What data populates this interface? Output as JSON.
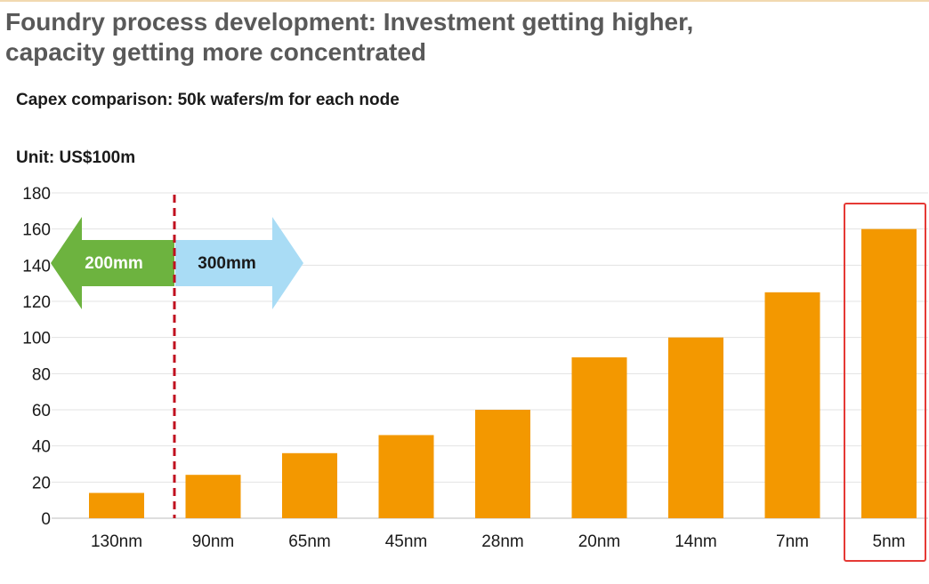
{
  "header": {
    "title_line1": "Foundry process development: Investment getting higher,",
    "title_line2": "capacity getting more concentrated"
  },
  "chart_data": {
    "type": "bar",
    "title": "Capex comparison: 50k wafers/m for each node",
    "unit_label": "Unit: US$100m",
    "xlabel": "",
    "ylabel": "",
    "categories": [
      "130nm",
      "90nm",
      "65nm",
      "45nm",
      "28nm",
      "20nm",
      "14nm",
      "7nm",
      "5nm"
    ],
    "values": [
      14,
      24,
      36,
      46,
      60,
      89,
      100,
      125,
      160
    ],
    "ylim": [
      0,
      180
    ],
    "yticks": [
      0,
      20,
      40,
      60,
      80,
      100,
      120,
      140,
      160,
      180
    ],
    "grid": true,
    "bar_color": "#f39800",
    "highlight_category": "5nm",
    "highlight_color": "#e53935",
    "divider_after_category": "130nm",
    "divider_color": "#c0101f",
    "annotations": {
      "left_arrow": {
        "label": "200mm",
        "color": "#6db33f"
      },
      "right_arrow": {
        "label": "300mm",
        "color": "#a9dcf5"
      }
    }
  }
}
